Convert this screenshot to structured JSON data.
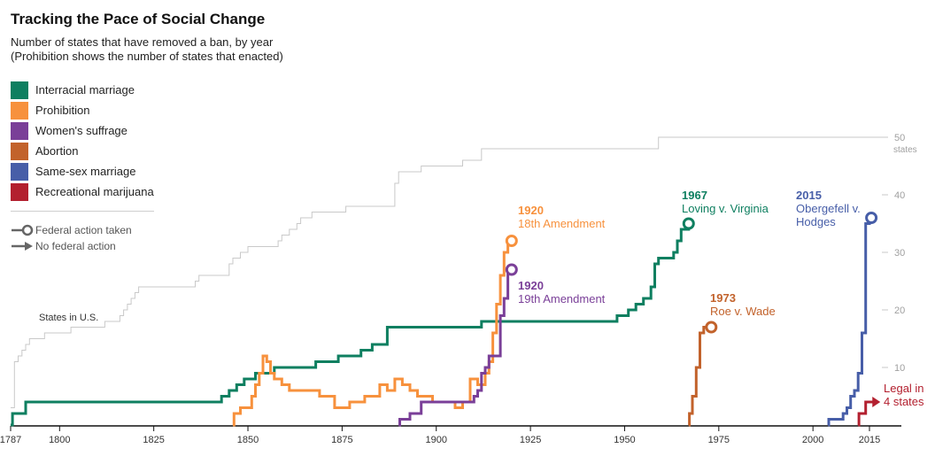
{
  "title": "Tracking the Pace of Social Change",
  "subtitle_lines": [
    "Number of states that have removed a ban, by year",
    "(Prohibition shows the number of states that enacted)"
  ],
  "legend": [
    {
      "label": "Interracial marriage",
      "color": "#0e7f60"
    },
    {
      "label": "Prohibition",
      "color": "#f7913d"
    },
    {
      "label": "Women's suffrage",
      "color": "#7a3f98"
    },
    {
      "label": "Abortion",
      "color": "#c2622b"
    },
    {
      "label": "Same-sex marriage",
      "color": "#475ea8"
    },
    {
      "label": "Recreational marijuana",
      "color": "#b3202f"
    }
  ],
  "key": {
    "federal": "Federal action taken",
    "no_federal": "No federal action"
  },
  "chart_data": {
    "type": "line",
    "step": true,
    "xlim": [
      1787,
      2019
    ],
    "ylim": [
      0,
      50
    ],
    "x_ticks": [
      1787,
      1800,
      1825,
      1850,
      1875,
      1900,
      1925,
      1950,
      1975,
      2000,
      2015
    ],
    "y_ticks": [
      10,
      20,
      30,
      40,
      50
    ],
    "y_unit_label": "states",
    "reference": {
      "name": "States in U.S.",
      "points": [
        [
          1787,
          3
        ],
        [
          1788,
          11
        ],
        [
          1789,
          12
        ],
        [
          1790,
          13
        ],
        [
          1791,
          14
        ],
        [
          1792,
          15
        ],
        [
          1796,
          16
        ],
        [
          1803,
          17
        ],
        [
          1812,
          18
        ],
        [
          1816,
          19
        ],
        [
          1817,
          20
        ],
        [
          1818,
          21
        ],
        [
          1819,
          22
        ],
        [
          1820,
          23
        ],
        [
          1821,
          24
        ],
        [
          1836,
          25
        ],
        [
          1837,
          26
        ],
        [
          1845,
          28
        ],
        [
          1846,
          29
        ],
        [
          1848,
          30
        ],
        [
          1850,
          31
        ],
        [
          1858,
          32
        ],
        [
          1859,
          33
        ],
        [
          1861,
          34
        ],
        [
          1863,
          35
        ],
        [
          1864,
          36
        ],
        [
          1867,
          37
        ],
        [
          1876,
          38
        ],
        [
          1889,
          42
        ],
        [
          1890,
          44
        ],
        [
          1896,
          45
        ],
        [
          1907,
          46
        ],
        [
          1912,
          48
        ],
        [
          1959,
          50
        ],
        [
          2019,
          50
        ]
      ]
    },
    "series": [
      {
        "key": "interracial",
        "color": "#0e7f60",
        "end": "circle",
        "annotation": {
          "year": "1967",
          "text": "Loving v. Virginia"
        },
        "points": [
          [
            1787,
            0
          ],
          [
            1787.5,
            2
          ],
          [
            1791,
            4
          ],
          [
            1842,
            4
          ],
          [
            1843,
            5
          ],
          [
            1845,
            6
          ],
          [
            1847,
            7
          ],
          [
            1849,
            8
          ],
          [
            1852,
            9
          ],
          [
            1857,
            10
          ],
          [
            1868,
            11
          ],
          [
            1874,
            12
          ],
          [
            1880,
            13
          ],
          [
            1883,
            14
          ],
          [
            1887,
            17
          ],
          [
            1912,
            18
          ],
          [
            1948,
            19
          ],
          [
            1951,
            20
          ],
          [
            1953,
            21
          ],
          [
            1955,
            22
          ],
          [
            1957,
            24
          ],
          [
            1958,
            28
          ],
          [
            1959,
            29
          ],
          [
            1963,
            30
          ],
          [
            1964,
            32
          ],
          [
            1965,
            34
          ],
          [
            1967,
            35
          ]
        ]
      },
      {
        "key": "prohibition",
        "color": "#f7913d",
        "end": "circle",
        "annotation": {
          "year": "1920",
          "text": "18th Amendment"
        },
        "points": [
          [
            1846,
            0
          ],
          [
            1846.3,
            2
          ],
          [
            1848,
            3
          ],
          [
            1851,
            5
          ],
          [
            1852,
            7
          ],
          [
            1853,
            9
          ],
          [
            1854,
            12
          ],
          [
            1855,
            11
          ],
          [
            1856,
            9
          ],
          [
            1857,
            8
          ],
          [
            1859,
            7
          ],
          [
            1861,
            6
          ],
          [
            1866,
            6
          ],
          [
            1869,
            5
          ],
          [
            1873,
            3
          ],
          [
            1877,
            4
          ],
          [
            1881,
            5
          ],
          [
            1885,
            7
          ],
          [
            1887,
            6
          ],
          [
            1889,
            8
          ],
          [
            1891,
            7
          ],
          [
            1893,
            6
          ],
          [
            1895,
            5
          ],
          [
            1899,
            4
          ],
          [
            1905,
            3
          ],
          [
            1907,
            4
          ],
          [
            1909,
            8
          ],
          [
            1911,
            7
          ],
          [
            1913,
            9
          ],
          [
            1914,
            11
          ],
          [
            1915,
            16
          ],
          [
            1916,
            21
          ],
          [
            1917,
            26
          ],
          [
            1918,
            30
          ],
          [
            1919,
            32
          ],
          [
            1920,
            32
          ]
        ]
      },
      {
        "key": "suffrage",
        "color": "#7a3f98",
        "end": "circle",
        "annotation": {
          "year": "1920",
          "text": "19th Amendment"
        },
        "points": [
          [
            1890,
            0
          ],
          [
            1890.3,
            1
          ],
          [
            1893,
            2
          ],
          [
            1896,
            4
          ],
          [
            1910,
            5
          ],
          [
            1911,
            6
          ],
          [
            1912,
            9
          ],
          [
            1913,
            10
          ],
          [
            1914,
            12
          ],
          [
            1917,
            19
          ],
          [
            1918,
            22
          ],
          [
            1919,
            27
          ],
          [
            1920,
            27
          ]
        ]
      },
      {
        "key": "abortion",
        "color": "#c2622b",
        "end": "circle",
        "annotation": {
          "year": "1973",
          "text": "Roe v. Wade"
        },
        "points": [
          [
            1967,
            0
          ],
          [
            1967.2,
            2
          ],
          [
            1968,
            5
          ],
          [
            1969,
            10
          ],
          [
            1970,
            16
          ],
          [
            1971,
            17
          ],
          [
            1973,
            17
          ]
        ]
      },
      {
        "key": "ssm",
        "color": "#475ea8",
        "end": "circle",
        "annotation": {
          "year": "2015",
          "text": "Obergefell v. Hodges"
        },
        "points": [
          [
            2004,
            0
          ],
          [
            2004.2,
            1
          ],
          [
            2008,
            2
          ],
          [
            2009,
            3
          ],
          [
            2010,
            5
          ],
          [
            2011,
            6
          ],
          [
            2012,
            9
          ],
          [
            2013,
            16
          ],
          [
            2014,
            35
          ],
          [
            2015,
            36
          ],
          [
            2015.5,
            36
          ]
        ]
      },
      {
        "key": "marijuana",
        "color": "#b3202f",
        "end": "arrow",
        "annotation": {
          "year": "",
          "text": "Legal in 4 states"
        },
        "points": [
          [
            2012,
            0
          ],
          [
            2012.2,
            2
          ],
          [
            2014,
            4
          ],
          [
            2016,
            4
          ]
        ]
      }
    ]
  }
}
